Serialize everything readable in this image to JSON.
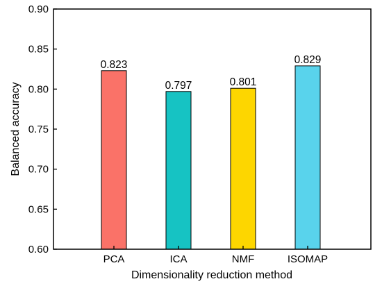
{
  "chart_data": {
    "type": "bar",
    "title": "",
    "xlabel": "Dimensionality reduction method",
    "ylabel": "Balanced accuracy",
    "categories": [
      "PCA",
      "ICA",
      "NMF",
      "ISOMAP"
    ],
    "values": [
      0.823,
      0.797,
      0.801,
      0.829
    ],
    "value_labels": [
      "0.823",
      "0.797",
      "0.801",
      "0.829"
    ],
    "colors": [
      "#FA7268",
      "#16C3C3",
      "#FDD600",
      "#59D3EC"
    ],
    "ylim": [
      0.6,
      0.9
    ],
    "yticks": [
      0.6,
      0.65,
      0.7,
      0.75,
      0.8,
      0.85,
      0.9
    ],
    "ytick_labels": [
      "0.60",
      "0.65",
      "0.70",
      "0.75",
      "0.80",
      "0.85",
      "0.90"
    ],
    "grid": false,
    "legend": "none"
  }
}
